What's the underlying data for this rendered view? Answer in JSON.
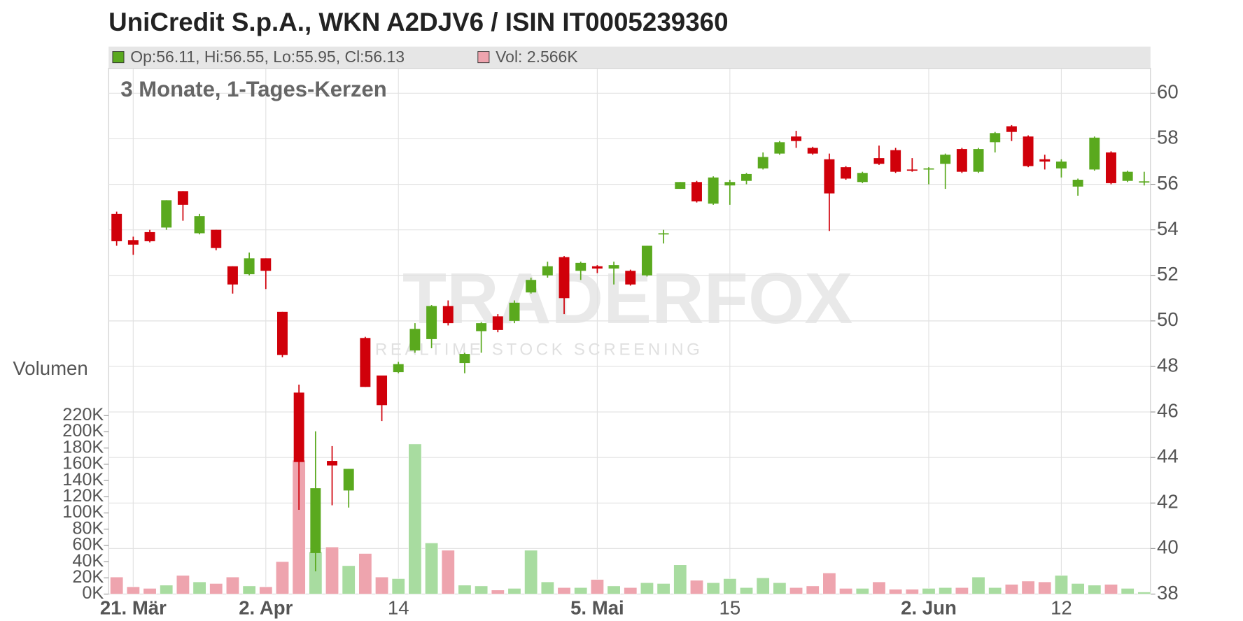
{
  "chart_data": {
    "type": "candlestick",
    "title": "UniCredit S.p.A., WKN A2DJV6 / ISIN IT0005239360",
    "subtitle": "3 Monate, 1-Tages-Kerzen",
    "legend": {
      "ohlc": "Op:56.11, Hi:56.55, Lo:55.95, Cl:56.13",
      "volume": "Vol: 2.566K"
    },
    "watermark": {
      "brand": "TRADERFOX",
      "tagline": "REALTIME STOCK SCREENING"
    },
    "y2label": "Volumen",
    "categories": [
      null,
      "21. Mär",
      null,
      null,
      null,
      null,
      null,
      null,
      null,
      "2. Apr",
      null,
      null,
      null,
      null,
      null,
      null,
      null,
      "14",
      null,
      null,
      null,
      null,
      null,
      null,
      null,
      null,
      null,
      null,
      null,
      "5. Mai",
      null,
      null,
      null,
      null,
      null,
      null,
      null,
      "15",
      null,
      null,
      null,
      null,
      null,
      null,
      null,
      null,
      null,
      null,
      null,
      "2. Jun",
      null,
      null,
      null,
      null,
      null,
      null,
      null,
      "12",
      null,
      null,
      null,
      null,
      null
    ],
    "open": [
      54.7,
      53.55,
      53.9,
      54.1,
      55.7,
      53.85,
      54.0,
      52.4,
      52.05,
      52.75,
      50.4,
      46.85,
      39.8,
      43.85,
      42.55,
      49.25,
      47.6,
      47.75,
      48.7,
      49.2,
      50.65,
      48.15,
      49.55,
      50.2,
      50.0,
      51.25,
      52.0,
      52.8,
      52.2,
      52.4,
      52.3,
      52.2,
      52.0,
      53.8,
      55.8,
      56.1,
      55.15,
      55.95,
      56.15,
      56.7,
      57.35,
      58.1,
      57.6,
      57.1,
      56.75,
      56.1,
      57.15,
      57.5,
      56.65,
      56.65,
      56.9,
      57.55,
      56.55,
      57.85,
      58.55,
      58.1,
      57.1,
      56.7,
      55.9,
      56.65,
      57.4,
      56.15,
      56.11
    ],
    "high": [
      54.8,
      53.7,
      54.0,
      55.3,
      55.7,
      54.7,
      54.0,
      52.4,
      53.0,
      52.75,
      50.4,
      47.2,
      45.15,
      44.5,
      43.5,
      49.3,
      47.6,
      48.2,
      49.9,
      50.7,
      50.9,
      48.6,
      49.95,
      50.3,
      50.9,
      51.9,
      52.6,
      52.85,
      52.6,
      52.45,
      52.6,
      52.25,
      53.3,
      54.0,
      56.1,
      56.15,
      56.35,
      56.2,
      56.5,
      57.4,
      57.9,
      58.35,
      57.65,
      57.35,
      56.8,
      56.55,
      57.7,
      57.6,
      57.15,
      56.75,
      57.35,
      57.6,
      57.6,
      58.3,
      58.6,
      58.15,
      57.3,
      57.1,
      56.25,
      58.1,
      57.45,
      56.6,
      56.55
    ],
    "low": [
      53.3,
      52.9,
      53.45,
      54.0,
      54.4,
      53.8,
      53.1,
      51.2,
      52.0,
      51.4,
      48.4,
      41.7,
      39.0,
      41.9,
      41.8,
      47.1,
      45.6,
      47.7,
      48.6,
      48.8,
      49.8,
      47.7,
      48.6,
      49.5,
      49.9,
      51.2,
      51.9,
      50.3,
      51.8,
      52.1,
      51.6,
      51.55,
      51.95,
      53.4,
      55.8,
      55.2,
      55.1,
      55.1,
      56.0,
      56.65,
      57.3,
      57.6,
      57.3,
      53.95,
      56.2,
      56.05,
      56.85,
      56.5,
      56.55,
      56.0,
      55.8,
      56.5,
      56.5,
      57.4,
      57.9,
      56.75,
      56.65,
      56.3,
      55.5,
      56.6,
      56.0,
      56.1,
      55.95
    ],
    "close": [
      53.5,
      53.35,
      53.5,
      55.3,
      55.1,
      54.6,
      53.2,
      51.6,
      52.75,
      52.2,
      48.5,
      43.8,
      42.65,
      43.65,
      43.5,
      47.1,
      46.3,
      48.1,
      49.65,
      50.65,
      49.9,
      48.55,
      49.9,
      49.6,
      50.8,
      51.8,
      52.4,
      51.0,
      52.55,
      52.3,
      52.45,
      51.6,
      53.3,
      53.85,
      56.1,
      55.25,
      56.3,
      56.1,
      56.45,
      57.2,
      57.85,
      57.9,
      57.35,
      55.6,
      56.25,
      56.5,
      56.9,
      56.55,
      56.6,
      56.7,
      57.3,
      56.55,
      57.55,
      58.25,
      58.3,
      56.8,
      57.0,
      57.0,
      56.2,
      58.05,
      56.05,
      56.55,
      56.13
    ],
    "volume": [
      21000,
      9000,
      7000,
      11000,
      23000,
      15000,
      13000,
      21000,
      10000,
      9000,
      40000,
      165000,
      52000,
      58000,
      35000,
      50000,
      21000,
      19000,
      185000,
      63000,
      54000,
      11000,
      10000,
      5000,
      7000,
      54000,
      15000,
      8000,
      8000,
      18000,
      10000,
      8000,
      14000,
      13000,
      36000,
      17000,
      14000,
      19000,
      8000,
      20000,
      14000,
      8000,
      10000,
      26000,
      7000,
      7000,
      15000,
      6000,
      6000,
      7000,
      8000,
      8000,
      21000,
      8000,
      12000,
      16000,
      15000,
      23000,
      13000,
      11000,
      12000,
      7000,
      2566
    ],
    "up_color": "#5aa91e",
    "down_color": "#d0000a",
    "volume_up_color": "#a8dca0",
    "volume_down_color": "#eea4ae",
    "ylim": [
      38,
      60
    ],
    "yticks": [
      38,
      40,
      42,
      44,
      46,
      48,
      50,
      52,
      54,
      56,
      58,
      60
    ],
    "y2lim": [
      0,
      220000
    ],
    "y2ticks": [
      {
        "value": 0,
        "label": "0K"
      },
      {
        "value": 20000,
        "label": "20K"
      },
      {
        "value": 40000,
        "label": "40K"
      },
      {
        "value": 60000,
        "label": "60K"
      },
      {
        "value": 80000,
        "label": "80K"
      },
      {
        "value": 100000,
        "label": "100K"
      },
      {
        "value": 120000,
        "label": "120K"
      },
      {
        "value": 140000,
        "label": "140K"
      },
      {
        "value": 160000,
        "label": "160K"
      },
      {
        "value": 180000,
        "label": "180K"
      },
      {
        "value": 200000,
        "label": "200K"
      },
      {
        "value": 220000,
        "label": "220K"
      }
    ],
    "grid": true
  }
}
